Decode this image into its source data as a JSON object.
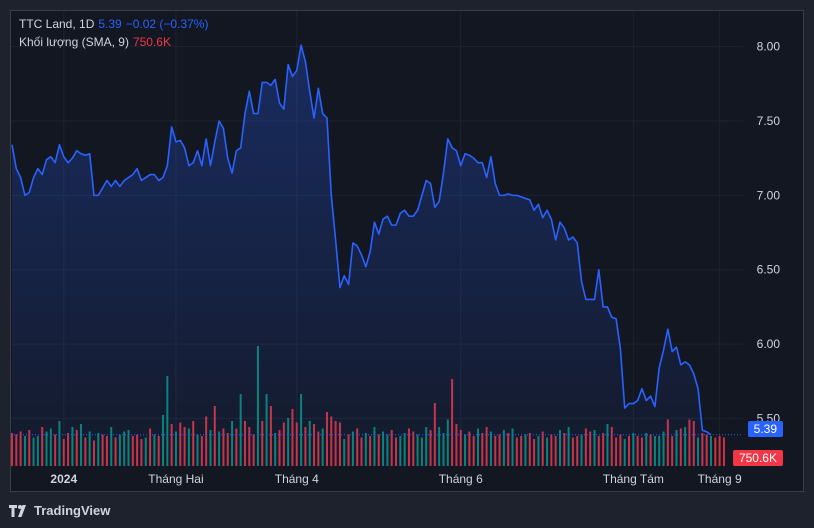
{
  "legend": {
    "symbol": "TTC Land, 1D",
    "last": "5.39",
    "change": "−0.02 (−0.37%)",
    "volume_label": "Khối lượng (SMA, 9)",
    "volume_value": "750.6K"
  },
  "badges": {
    "price": "5.39",
    "volume": "750.6K"
  },
  "footer": {
    "brand": "TradingView"
  },
  "colors": {
    "line": "#2962ff",
    "up": "#089981",
    "down": "#f23645",
    "grid": "#1f232e",
    "text": "#d1d4dc"
  },
  "chart_data": {
    "type": "line",
    "title": "",
    "xlabel": "",
    "ylabel": "",
    "ylim": [
      5.18,
      8.24
    ],
    "y_ticks": [
      "8.00",
      "7.50",
      "7.00",
      "6.50",
      "6.00",
      "5.50"
    ],
    "y_tick_values": [
      8.0,
      7.5,
      7.0,
      6.5,
      6.0,
      5.5
    ],
    "x_ticks": [
      "2024",
      "Tháng Hai",
      "Tháng 4",
      "Tháng 6",
      "Tháng Tám",
      "Tháng 9"
    ],
    "x_tick_index": [
      12,
      38,
      66,
      104,
      144,
      164
    ],
    "grid": true,
    "series": [
      {
        "values": [
          7.34,
          7.18,
          7.12,
          7.0,
          7.02,
          7.12,
          7.18,
          7.14,
          7.24,
          7.26,
          7.22,
          7.34,
          7.26,
          7.22,
          7.25,
          7.3,
          7.28,
          7.27,
          7.28,
          7.0,
          7.0,
          7.05,
          7.1,
          7.06,
          7.1,
          7.06,
          7.1,
          7.12,
          7.14,
          7.18,
          7.1,
          7.12,
          7.14,
          7.14,
          7.1,
          7.12,
          7.2,
          7.46,
          7.36,
          7.37,
          7.32,
          7.2,
          7.22,
          7.3,
          7.2,
          7.38,
          7.2,
          7.36,
          7.5,
          7.45,
          7.25,
          7.15,
          7.3,
          7.32,
          7.55,
          7.7,
          7.55,
          7.55,
          7.76,
          7.76,
          7.74,
          7.78,
          7.62,
          7.58,
          7.88,
          7.8,
          7.84,
          8.01,
          7.9,
          7.7,
          7.52,
          7.72,
          7.55,
          7.52,
          7.0,
          6.7,
          6.38,
          6.46,
          6.4,
          6.68,
          6.66,
          6.6,
          6.52,
          6.62,
          6.82,
          6.74,
          6.84,
          6.86,
          6.8,
          6.8,
          6.88,
          6.9,
          6.86,
          6.86,
          6.9,
          7.0,
          7.1,
          7.08,
          6.92,
          6.96,
          7.15,
          7.38,
          7.32,
          7.3,
          7.2,
          7.28,
          7.27,
          7.25,
          7.22,
          7.22,
          7.12,
          7.26,
          7.08,
          7.0,
          7.0,
          7.01,
          7.0,
          7.0,
          6.99,
          6.98,
          6.97,
          6.9,
          6.94,
          6.85,
          6.9,
          6.84,
          6.7,
          6.82,
          6.78,
          6.7,
          6.72,
          6.68,
          6.42,
          6.3,
          6.3,
          6.3,
          6.5,
          6.25,
          6.25,
          6.18,
          6.17,
          5.97,
          5.57,
          5.6,
          5.6,
          5.62,
          5.7,
          5.62,
          5.65,
          5.58,
          5.84,
          5.96,
          6.1,
          5.95,
          5.98,
          5.86,
          5.88,
          5.86,
          5.8,
          5.7,
          5.42,
          5.41,
          5.39
        ],
        "color": "#2962ff"
      }
    ],
    "volume": {
      "values": [
        220,
        210,
        230,
        200,
        240,
        190,
        200,
        260,
        230,
        250,
        210,
        300,
        180,
        220,
        260,
        240,
        280,
        190,
        230,
        170,
        220,
        210,
        200,
        260,
        190,
        210,
        230,
        240,
        200,
        210,
        180,
        190,
        250,
        210,
        200,
        340,
        600,
        280,
        230,
        290,
        260,
        250,
        300,
        210,
        200,
        330,
        240,
        400,
        230,
        250,
        220,
        300,
        250,
        480,
        300,
        260,
        210,
        800,
        300,
        480,
        400,
        220,
        240,
        290,
        320,
        380,
        290,
        480,
        260,
        300,
        280,
        230,
        250,
        360,
        330,
        300,
        290,
        180,
        210,
        230,
        250,
        190,
        220,
        200,
        260,
        210,
        230,
        210,
        240,
        190,
        200,
        220,
        250,
        230,
        210,
        190,
        260,
        240,
        420,
        260,
        220,
        310,
        580,
        280,
        240,
        210,
        230,
        200,
        250,
        220,
        260,
        230,
        200,
        210,
        240,
        220,
        250,
        190,
        200,
        210,
        220,
        180,
        200,
        230,
        190,
        210,
        200,
        240,
        220,
        260,
        190,
        200,
        210,
        250,
        230,
        240,
        200,
        220,
        280,
        260,
        190,
        210,
        180,
        200,
        220,
        200,
        190,
        220,
        210,
        200,
        200,
        230,
        310,
        200,
        240,
        250,
        260,
        310,
        300,
        190,
        220,
        210,
        200,
        190,
        200,
        190
      ],
      "up": [
        false,
        false,
        false,
        true,
        false,
        true,
        true,
        false,
        true,
        true,
        false,
        true,
        false,
        false,
        true,
        false,
        true,
        false,
        true,
        false,
        true,
        false,
        false,
        true,
        false,
        true,
        true,
        true,
        false,
        false,
        false,
        true,
        false,
        true,
        false,
        true,
        true,
        false,
        true,
        false,
        false,
        true,
        false,
        true,
        false,
        false,
        true,
        false,
        true,
        false,
        false,
        true,
        false,
        true,
        false,
        false,
        false,
        true,
        false,
        true,
        false,
        true,
        false,
        false,
        true,
        false,
        false,
        true,
        false,
        true,
        false,
        false,
        true,
        false,
        false,
        false,
        false,
        true,
        false,
        true,
        false,
        false,
        true,
        false,
        true,
        false,
        true,
        true,
        false,
        false,
        true,
        true,
        false,
        false,
        true,
        true,
        true,
        false,
        false,
        true,
        true,
        true,
        false,
        false,
        false,
        true,
        false,
        false,
        true,
        false,
        false,
        true,
        false,
        false,
        true,
        false,
        true,
        false,
        false,
        true,
        false,
        false,
        true,
        false,
        true,
        false,
        false,
        true,
        false,
        true,
        false,
        false,
        true,
        false,
        false,
        true,
        false,
        false,
        true,
        false,
        false,
        false,
        true,
        false,
        true,
        false,
        false,
        true,
        false,
        true,
        true,
        true,
        false,
        false,
        true,
        false,
        true,
        false,
        false,
        true,
        false,
        false,
        true,
        false,
        false,
        false
      ],
      "max": 800
    }
  }
}
